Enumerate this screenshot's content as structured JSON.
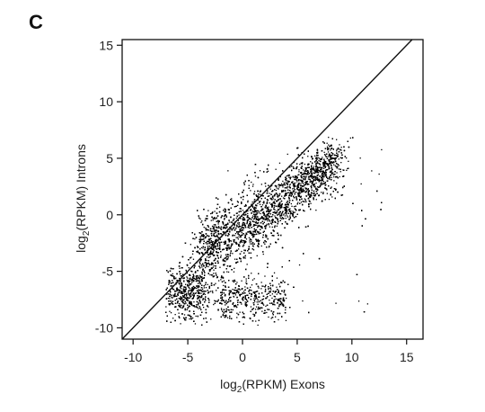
{
  "panel_label": "C",
  "chart_data": {
    "type": "scatter",
    "title": "",
    "xlabel_main": "log",
    "xlabel_sub": "2",
    "xlabel_rest": "(RPKM) Exons",
    "ylabel_main": "log",
    "ylabel_sub": "2",
    "ylabel_rest": "(RPKM) Introns",
    "xlim": [
      -11,
      16.5
    ],
    "ylim": [
      -11,
      15.5
    ],
    "xticks": [
      -10,
      -5,
      0,
      5,
      10,
      15
    ],
    "yticks": [
      -10,
      -5,
      0,
      5,
      10,
      15
    ],
    "xtick_labels": [
      "-10",
      "-5",
      "0",
      "5",
      "10",
      "15"
    ],
    "ytick_labels": [
      "-10",
      "-5",
      "0",
      "5",
      "10",
      "15"
    ],
    "reference_line": {
      "slope": 1,
      "intercept": 0
    },
    "point_color": "#000000",
    "point_count": 9000,
    "point_summary": "dense cloud from about (-7,-9) to (14,8); main mass along a rising band below the y=x line, with a dense cluster near x=-5, y=-7 and the densest region around x=5..8, y=2..4"
  }
}
